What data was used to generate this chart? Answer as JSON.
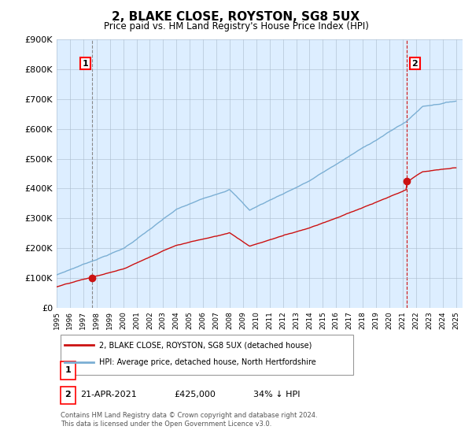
{
  "title": "2, BLAKE CLOSE, ROYSTON, SG8 5UX",
  "subtitle": "Price paid vs. HM Land Registry's House Price Index (HPI)",
  "ylim": [
    0,
    900000
  ],
  "yticks": [
    0,
    100000,
    200000,
    300000,
    400000,
    500000,
    600000,
    700000,
    800000,
    900000
  ],
  "ytick_labels": [
    "£0",
    "£100K",
    "£200K",
    "£300K",
    "£400K",
    "£500K",
    "£600K",
    "£700K",
    "£800K",
    "£900K"
  ],
  "hpi_color": "#7bafd4",
  "price_color": "#cc1111",
  "chart_bg": "#ddeeff",
  "sale1_year": 1997.64,
  "sale1_price": 99995,
  "sale2_year": 2021.31,
  "sale2_price": 425000,
  "legend_label1": "2, BLAKE CLOSE, ROYSTON, SG8 5UX (detached house)",
  "legend_label2": "HPI: Average price, detached house, North Hertfordshire",
  "footnote": "Contains HM Land Registry data © Crown copyright and database right 2024.\nThis data is licensed under the Open Government Licence v3.0.",
  "background_color": "#ffffff",
  "grid_color": "#aabbcc"
}
